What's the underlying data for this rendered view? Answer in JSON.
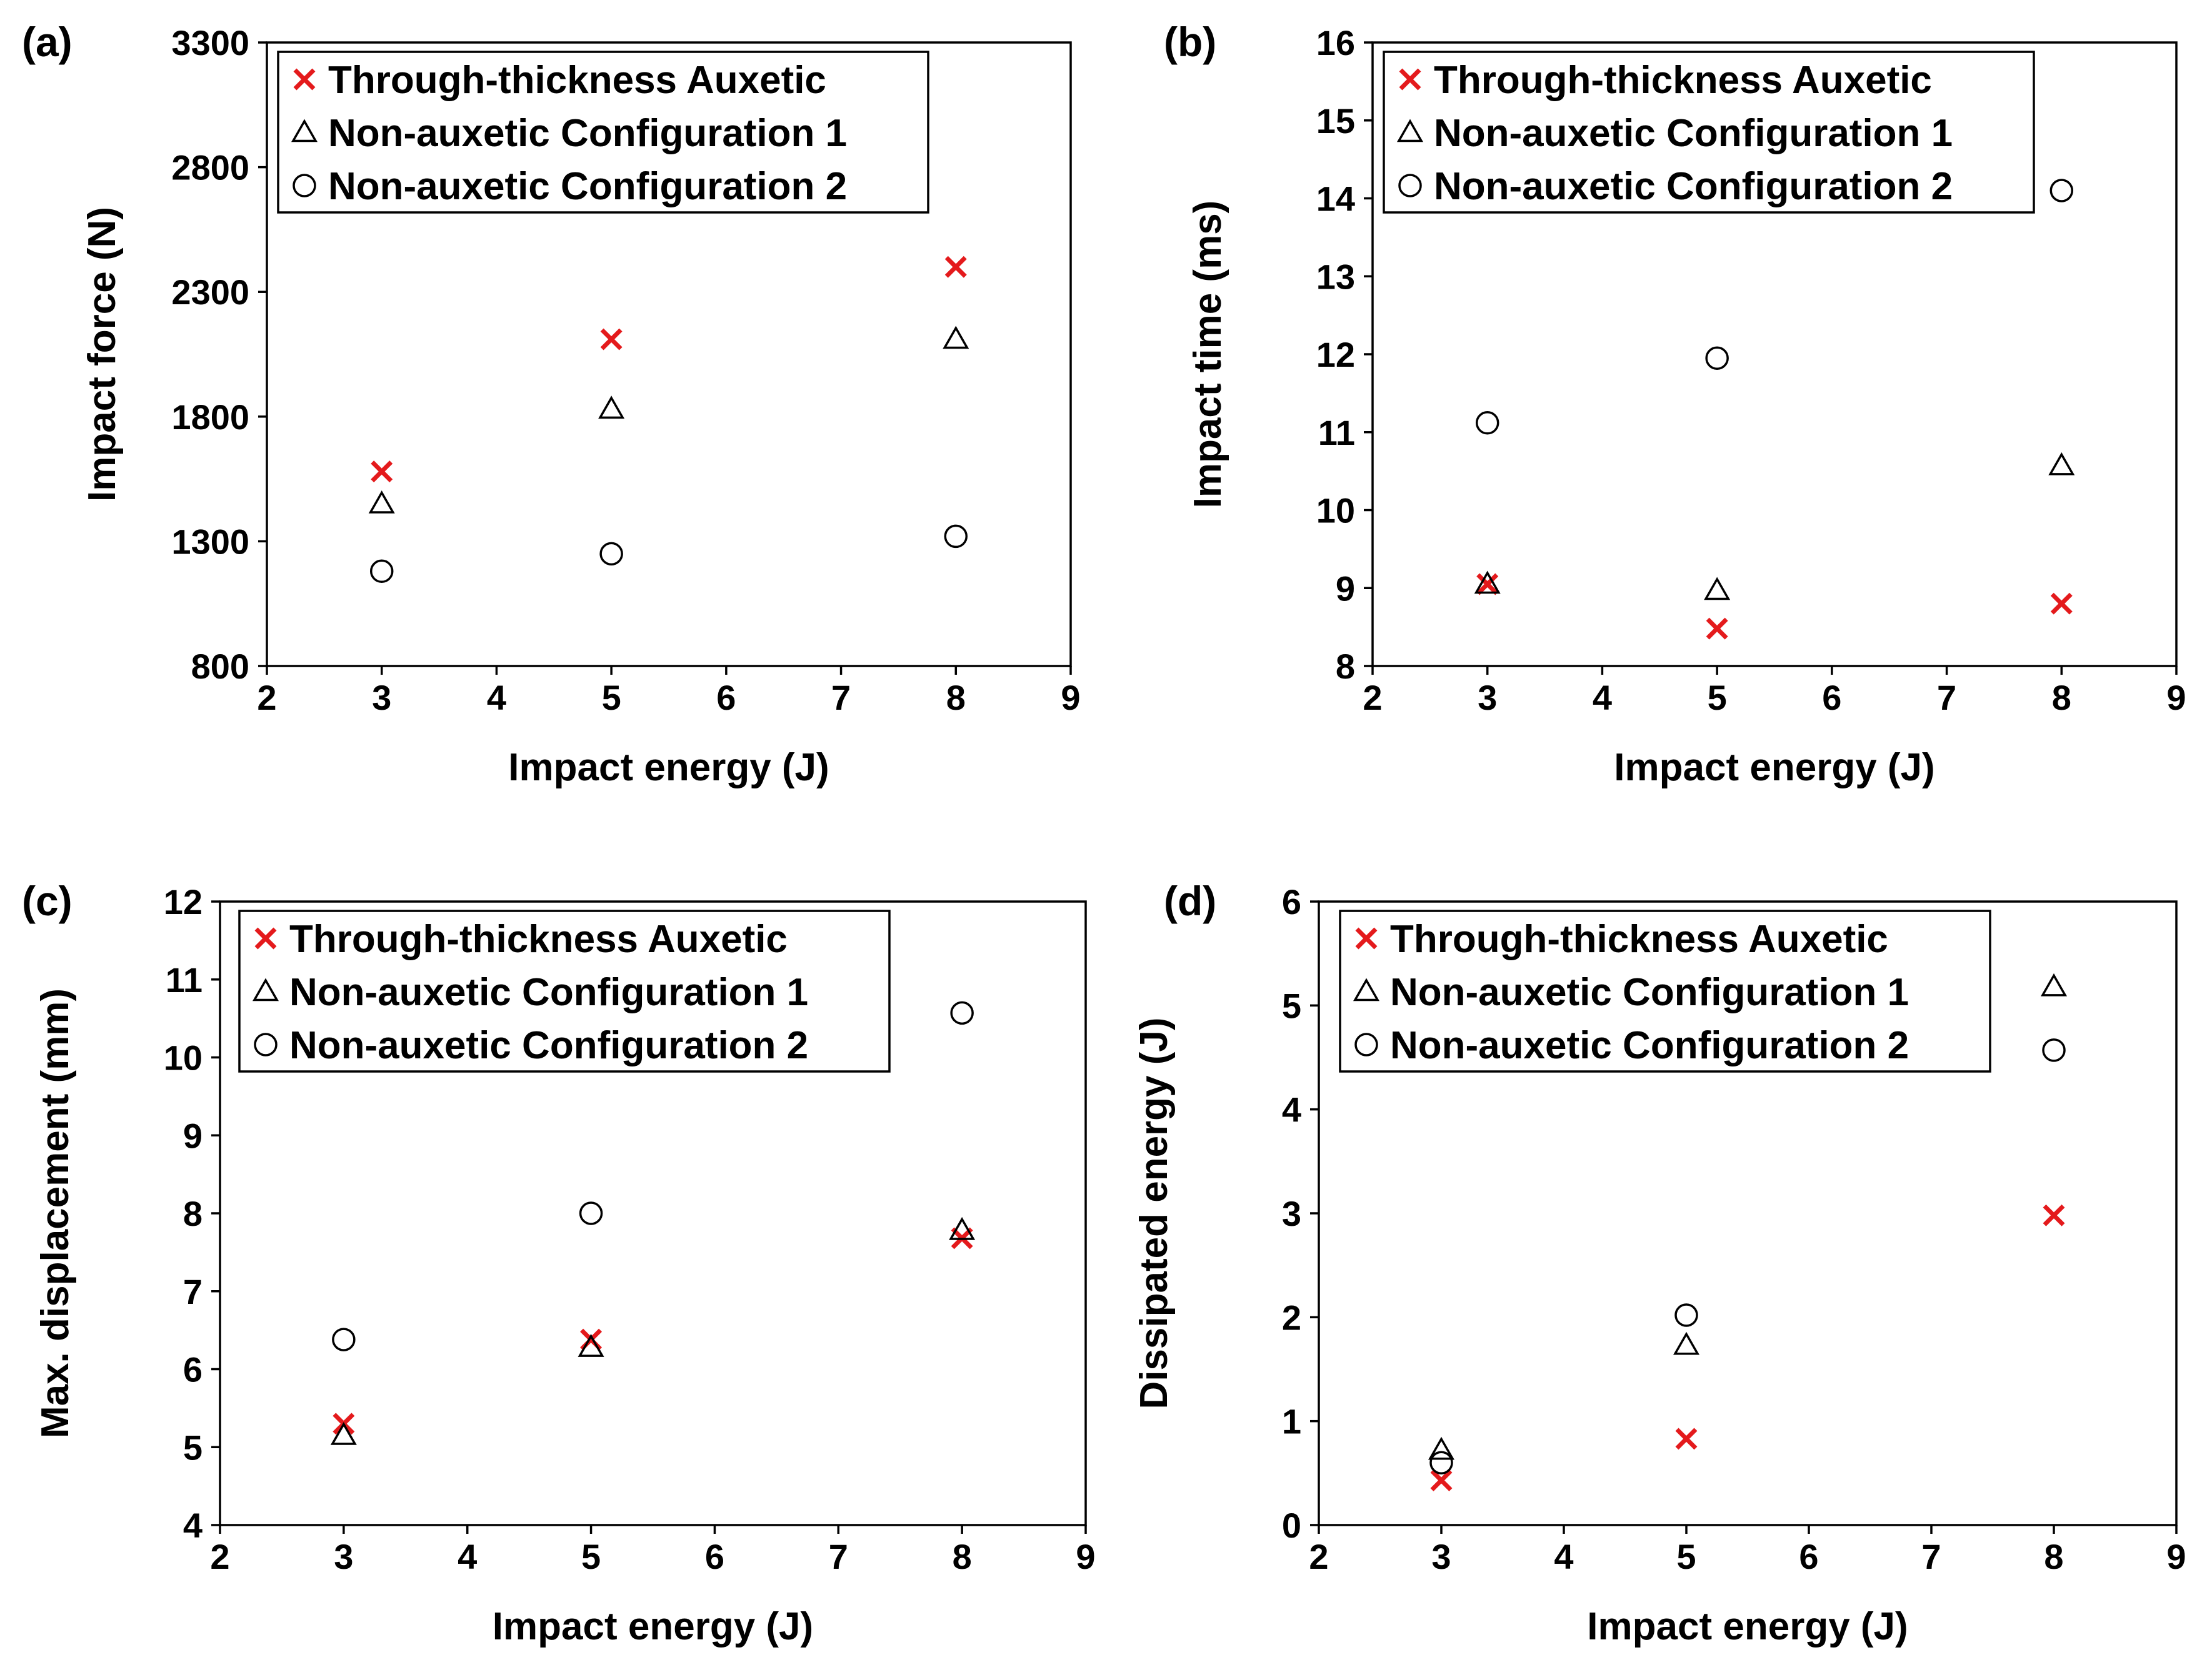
{
  "figure": {
    "colors": {
      "auxetic": "#e41a1c",
      "non_auxetic": "#000000",
      "frame": "#000000"
    }
  },
  "chart_data": [
    {
      "type": "scatter",
      "panel_label": "(a)",
      "xlabel": "Impact energy (J)",
      "ylabel": "Impact force (N)",
      "xlim": [
        2,
        9
      ],
      "ylim": [
        800,
        3300
      ],
      "xticks": [
        2,
        3,
        4,
        5,
        6,
        7,
        8,
        9
      ],
      "yticks": [
        800,
        1300,
        1800,
        2300,
        2800,
        3300
      ],
      "legend_position": "top-left",
      "series": [
        {
          "name": "Through-thickness Auxetic",
          "marker": "x",
          "x": [
            3,
            5,
            8
          ],
          "y": [
            1580,
            2110,
            2400
          ]
        },
        {
          "name": "Non-auxetic Configuration 1",
          "marker": "triangle",
          "x": [
            3,
            5,
            8
          ],
          "y": [
            1450,
            1830,
            2110
          ]
        },
        {
          "name": "Non-auxetic Configuration 2",
          "marker": "circle",
          "x": [
            3,
            5,
            8
          ],
          "y": [
            1180,
            1250,
            1320
          ]
        }
      ]
    },
    {
      "type": "scatter",
      "panel_label": "(b)",
      "xlabel": "Impact energy (J)",
      "ylabel": "Impact time (ms)",
      "xlim": [
        2,
        9
      ],
      "ylim": [
        8,
        16
      ],
      "xticks": [
        2,
        3,
        4,
        5,
        6,
        7,
        8,
        9
      ],
      "yticks": [
        8,
        9,
        10,
        11,
        12,
        13,
        14,
        15,
        16
      ],
      "legend_position": "top-left",
      "series": [
        {
          "name": "Through-thickness Auxetic",
          "marker": "x",
          "x": [
            3,
            5,
            8
          ],
          "y": [
            9.05,
            8.48,
            8.8
          ]
        },
        {
          "name": "Non-auxetic Configuration 1",
          "marker": "triangle",
          "x": [
            3,
            5,
            8
          ],
          "y": [
            9.05,
            8.97,
            10.57
          ]
        },
        {
          "name": "Non-auxetic Configuration 2",
          "marker": "circle",
          "x": [
            3,
            5,
            8
          ],
          "y": [
            11.12,
            11.95,
            14.1
          ]
        }
      ]
    },
    {
      "type": "scatter",
      "panel_label": "(c)",
      "xlabel": "Impact energy (J)",
      "ylabel": "Max. displacement (mm)",
      "xlim": [
        2,
        9
      ],
      "ylim": [
        4,
        12
      ],
      "xticks": [
        2,
        3,
        4,
        5,
        6,
        7,
        8,
        9
      ],
      "yticks": [
        4,
        5,
        6,
        7,
        8,
        9,
        10,
        11,
        12
      ],
      "legend_position": "top-left",
      "series": [
        {
          "name": "Through-thickness Auxetic",
          "marker": "x",
          "x": [
            3,
            5,
            8
          ],
          "y": [
            5.3,
            6.38,
            7.68
          ]
        },
        {
          "name": "Non-auxetic Configuration 1",
          "marker": "triangle",
          "x": [
            3,
            5,
            8
          ],
          "y": [
            5.15,
            6.28,
            7.78
          ]
        },
        {
          "name": "Non-auxetic Configuration 2",
          "marker": "circle",
          "x": [
            3,
            5,
            8
          ],
          "y": [
            6.38,
            8.0,
            10.57
          ]
        }
      ]
    },
    {
      "type": "scatter",
      "panel_label": "(d)",
      "xlabel": "Impact energy (J)",
      "ylabel": "Dissipated energy (J)",
      "xlim": [
        2,
        9
      ],
      "ylim": [
        0,
        6
      ],
      "xticks": [
        2,
        3,
        4,
        5,
        6,
        7,
        8,
        9
      ],
      "yticks": [
        0,
        1,
        2,
        3,
        4,
        5,
        6
      ],
      "legend_position": "top-left",
      "series": [
        {
          "name": "Through-thickness Auxetic",
          "marker": "x",
          "x": [
            3,
            5,
            8
          ],
          "y": [
            0.43,
            0.83,
            2.98
          ]
        },
        {
          "name": "Non-auxetic Configuration 1",
          "marker": "triangle",
          "x": [
            3,
            5,
            8
          ],
          "y": [
            0.72,
            1.73,
            5.18
          ]
        },
        {
          "name": "Non-auxetic Configuration 2",
          "marker": "circle",
          "x": [
            3,
            5,
            8
          ],
          "y": [
            0.6,
            2.02,
            4.57
          ]
        }
      ]
    }
  ]
}
